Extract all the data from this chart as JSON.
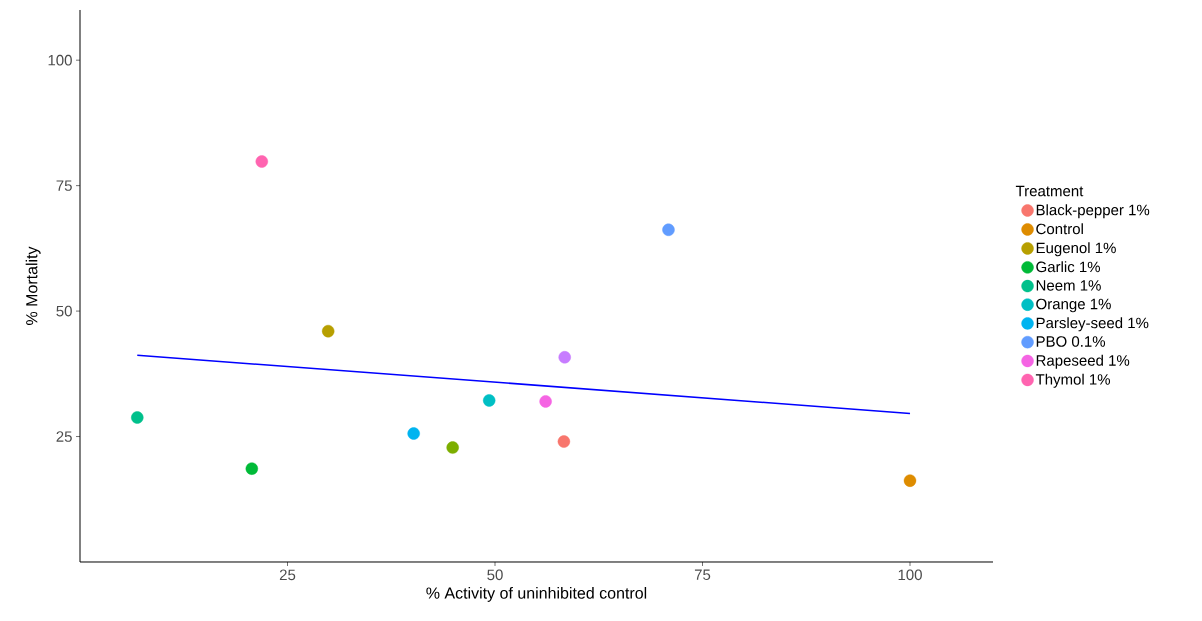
{
  "chart_data": {
    "type": "scatter",
    "xlabel": "% Activity of uninhibited control",
    "ylabel": "% Mortality",
    "legend_title": "Treatment",
    "legend": "right",
    "grid": false,
    "marker": "circle",
    "xlim": [
      0,
      110
    ],
    "ylim": [
      0,
      110
    ],
    "xticks": [
      25,
      50,
      75,
      100
    ],
    "yticks": [
      25,
      50,
      75,
      100
    ],
    "series": [
      {
        "name": "Black-pepper 1%",
        "color": "#F8766D",
        "x": [
          58.3
        ],
        "values": [
          24
        ]
      },
      {
        "name": "Control",
        "color": "#DE8C00",
        "x": [
          100
        ],
        "values": [
          16.2
        ]
      },
      {
        "name": "Eugenol 1%",
        "color": "#B79F00",
        "x": [
          29.9
        ],
        "values": [
          46
        ]
      },
      {
        "color": "#7CAE00",
        "x": [
          44.9
        ],
        "values": [
          22.8
        ]
      },
      {
        "name": "Garlic 1%",
        "color": "#00BA38",
        "x": [
          20.7
        ],
        "values": [
          18.6
        ]
      },
      {
        "name": "Neem 1%",
        "color": "#00C08B",
        "x": [
          6.9
        ],
        "values": [
          28.8
        ]
      },
      {
        "name": "Orange 1%",
        "color": "#00BFC4",
        "x": [
          49.3
        ],
        "values": [
          32.2
        ]
      },
      {
        "name": "Parsley-seed 1%",
        "color": "#00B4F0",
        "x": [
          40.2
        ],
        "values": [
          25.6
        ]
      },
      {
        "name": "PBO 0.1%",
        "color": "#619CFF",
        "x": [
          70.9
        ],
        "values": [
          66.2
        ]
      },
      {
        "color": "#C77CFF",
        "x": [
          58.4
        ],
        "values": [
          40.8
        ]
      },
      {
        "name": "Rapeseed 1%",
        "color": "#F564E3",
        "x": [
          56.1
        ],
        "values": [
          32
        ]
      },
      {
        "name": "Thymol 1%",
        "color": "#FF64B0",
        "x": [
          21.9
        ],
        "values": [
          79.8
        ]
      },
      {
        "type": "line",
        "marker": "none",
        "color": "#0000FF",
        "x": [
          6.9,
          100
        ],
        "values": [
          41.2,
          29.6
        ]
      }
    ]
  }
}
